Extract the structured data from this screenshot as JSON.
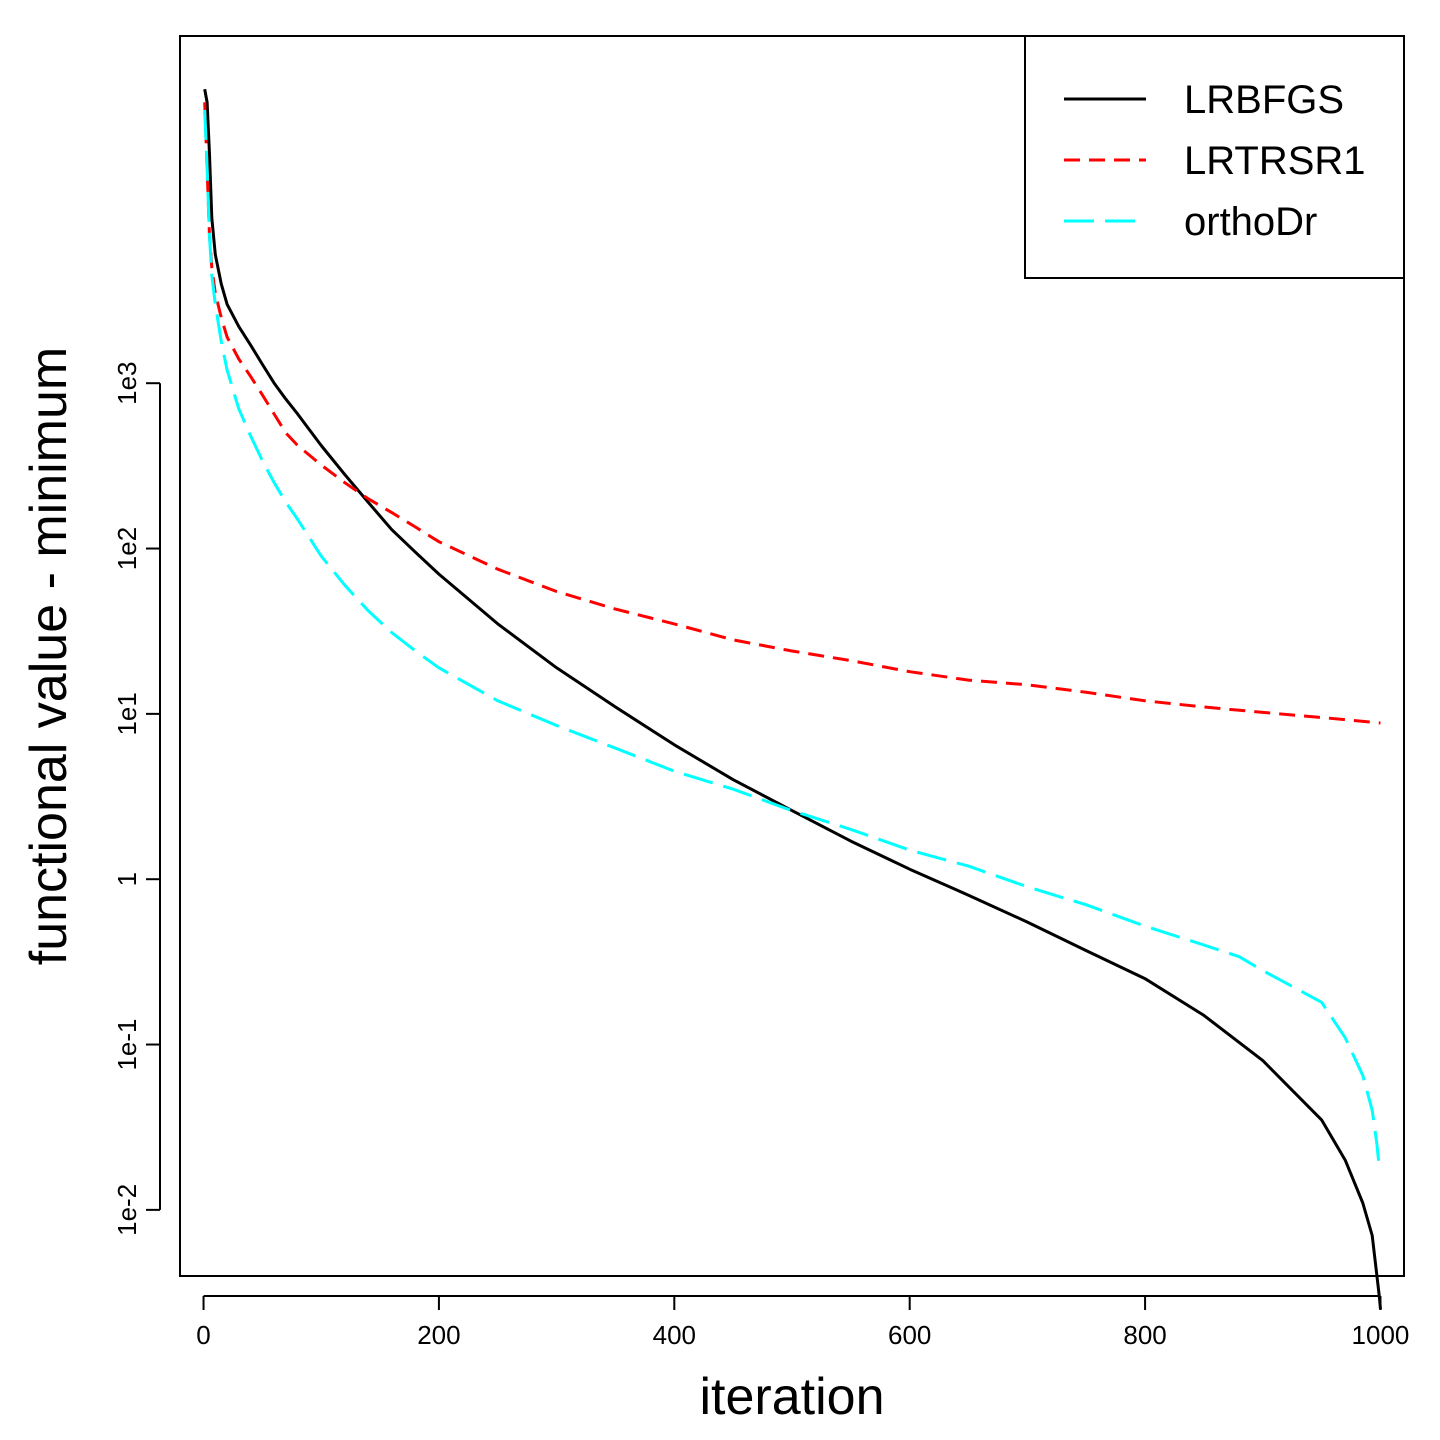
{
  "chart_data": {
    "type": "line",
    "title": "",
    "xlabel": "iteration",
    "ylabel": "functional value - minimum",
    "xlim": [
      -20,
      1020
    ],
    "ylim_log10": [
      -2.4,
      5.1
    ],
    "y_scale": "log",
    "grid": false,
    "legend_position": "top-right",
    "x_ticks": [
      0,
      200,
      400,
      600,
      800,
      1000
    ],
    "x_tick_labels": [
      "0",
      "200",
      "400",
      "600",
      "800",
      "1000"
    ],
    "y_ticks": [
      0.01,
      0.1,
      1,
      10,
      100,
      1000
    ],
    "y_tick_labels": [
      "1e-2",
      "1e-1",
      "1",
      "1e1",
      "1e2",
      "1e3"
    ],
    "series": [
      {
        "name": "LRBFGS",
        "color": "#000000",
        "dash": "solid",
        "x": [
          1,
          3,
          5,
          7,
          10,
          15,
          20,
          30,
          40,
          50,
          60,
          70,
          80,
          100,
          120,
          140,
          160,
          180,
          200,
          250,
          300,
          350,
          400,
          450,
          500,
          550,
          600,
          650,
          700,
          750,
          800,
          850,
          900,
          950,
          970,
          985,
          993,
          997,
          999,
          1000
        ],
        "y": [
          60000,
          50000,
          25000,
          10000,
          6000,
          4000,
          3000,
          2200,
          1700,
          1300,
          1000,
          800,
          650,
          420,
          280,
          190,
          130,
          95,
          70,
          35,
          19,
          11,
          6.5,
          4,
          2.6,
          1.7,
          1.15,
          0.8,
          0.55,
          0.37,
          0.25,
          0.15,
          0.08,
          0.035,
          0.02,
          0.011,
          0.007,
          0.004,
          0.003,
          0.0025
        ]
      },
      {
        "name": "LRTRSR1",
        "color": "#ff0000",
        "dash": "dashed",
        "x": [
          1,
          3,
          5,
          7,
          10,
          15,
          20,
          30,
          40,
          50,
          60,
          70,
          80,
          100,
          120,
          140,
          160,
          180,
          200,
          250,
          300,
          350,
          400,
          450,
          500,
          550,
          600,
          650,
          700,
          750,
          800,
          850,
          900,
          950,
          1000
        ],
        "y": [
          50000,
          20000,
          8000,
          5000,
          3500,
          2500,
          1900,
          1400,
          1100,
          850,
          650,
          500,
          420,
          320,
          250,
          200,
          165,
          135,
          110,
          75,
          55,
          43,
          35,
          28,
          24,
          21,
          18,
          16,
          15,
          13.5,
          12,
          11,
          10.2,
          9.5,
          8.8
        ]
      },
      {
        "name": "orthoDr",
        "color": "#00ffff",
        "dash": "longdash",
        "x": [
          1,
          3,
          5,
          7,
          10,
          15,
          20,
          30,
          40,
          50,
          60,
          70,
          80,
          100,
          120,
          140,
          160,
          180,
          200,
          250,
          300,
          350,
          400,
          450,
          500,
          550,
          600,
          650,
          700,
          750,
          800,
          850,
          880,
          900,
          950,
          970,
          985,
          993,
          997,
          999
        ],
        "y": [
          45000,
          20000,
          8000,
          4500,
          3000,
          1800,
          1200,
          700,
          480,
          340,
          250,
          190,
          150,
          90,
          60,
          42,
          31,
          24,
          19,
          12,
          8.5,
          6.2,
          4.5,
          3.5,
          2.6,
          2,
          1.5,
          1.2,
          0.9,
          0.7,
          0.52,
          0.4,
          0.34,
          0.28,
          0.18,
          0.11,
          0.065,
          0.04,
          0.025,
          0.018
        ]
      }
    ]
  }
}
